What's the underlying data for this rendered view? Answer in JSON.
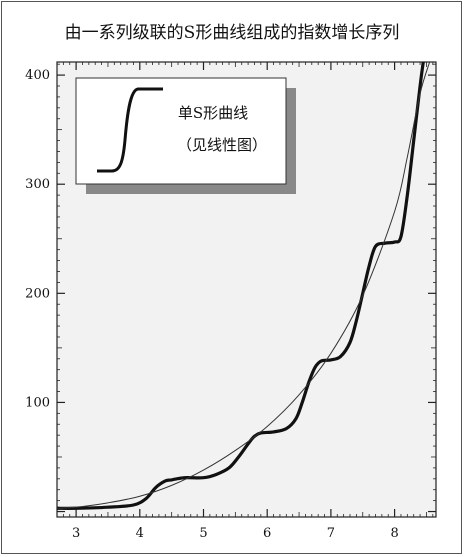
{
  "chart_data": {
    "type": "line",
    "title": "由一系列级联的S形曲线组成的指数增长序列",
    "xlabel": "",
    "ylabel": "",
    "xlim": [
      2.7,
      8.65
    ],
    "ylim": [
      -5,
      412
    ],
    "x_ticks": [
      3,
      4,
      5,
      6,
      7,
      8
    ],
    "y_ticks": [
      100,
      200,
      300,
      400
    ],
    "grid": false,
    "series": [
      {
        "name": "",
        "style": "thick",
        "color": "#111111",
        "x": [
          2.7,
          3.0,
          3.5,
          3.9,
          4.1,
          4.25,
          4.4,
          4.5,
          4.7,
          5.0,
          5.2,
          5.4,
          5.55,
          5.7,
          5.8,
          5.9,
          6.1,
          6.3,
          6.45,
          6.55,
          6.65,
          6.75,
          6.85,
          7.0,
          7.15,
          7.3,
          7.4,
          7.5,
          7.6,
          7.7,
          7.85,
          8.0,
          8.1,
          8.2,
          8.3,
          8.4,
          8.45
        ],
        "y": [
          3,
          3,
          4,
          6,
          12,
          22,
          28,
          29,
          31,
          31,
          34,
          40,
          50,
          62,
          69,
          72,
          73,
          76,
          85,
          100,
          118,
          132,
          138,
          139,
          142,
          155,
          175,
          200,
          225,
          243,
          246,
          247,
          252,
          290,
          340,
          390,
          412
        ]
      },
      {
        "name": "",
        "style": "thin",
        "color": "#333333",
        "x": [
          2.7,
          3.0,
          3.5,
          4.0,
          4.5,
          5.0,
          5.5,
          6.0,
          6.5,
          7.0,
          7.5,
          8.0,
          8.2,
          8.4,
          8.55
        ],
        "y": [
          3,
          4,
          8,
          14,
          24,
          38,
          56,
          78,
          107,
          145,
          198,
          275,
          325,
          383,
          412
        ]
      }
    ],
    "inset": {
      "label": "单S形曲线",
      "sublabel": "（见线性图）"
    }
  }
}
